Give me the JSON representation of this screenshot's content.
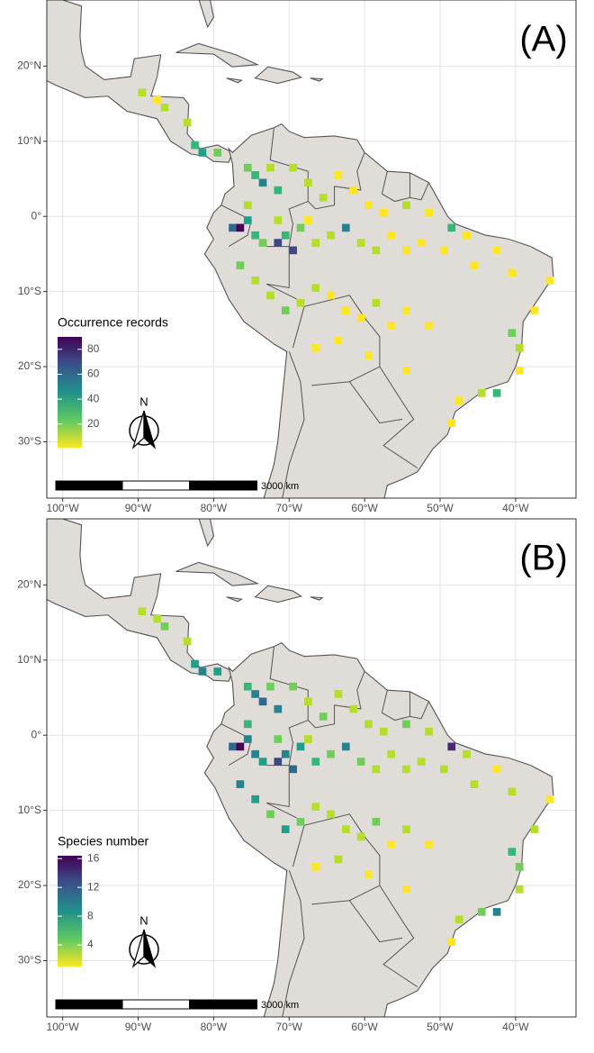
{
  "map": {
    "xticks": [
      {
        "value": -100,
        "label": "100°W"
      },
      {
        "value": -90,
        "label": "90°W"
      },
      {
        "value": -80,
        "label": "80°W"
      },
      {
        "value": -70,
        "label": "70°W"
      },
      {
        "value": -60,
        "label": "60°W"
      },
      {
        "value": -50,
        "label": "50°W"
      },
      {
        "value": -40,
        "label": "40°W"
      }
    ],
    "yticks": [
      {
        "value": 20,
        "label": "20°N"
      },
      {
        "value": 10,
        "label": "10°N"
      },
      {
        "value": 0,
        "label": "0°"
      },
      {
        "value": -10,
        "label": "10°S"
      },
      {
        "value": -20,
        "label": "20°S"
      },
      {
        "value": -30,
        "label": "30°S"
      }
    ],
    "xlim": [
      -102.1,
      -32
    ],
    "ylim": [
      -37.5,
      28.8
    ],
    "scale_bar": "3000 km",
    "north": "N",
    "panels": [
      {
        "label": "(A)",
        "legend_title": "Occurrence records",
        "color_lim": [
          1,
          90
        ],
        "legend_ticks": [
          20,
          40,
          60,
          80
        ],
        "cells": [
          [
            -90,
            17,
            8
          ],
          [
            -88,
            16,
            5
          ],
          [
            -87,
            15,
            12
          ],
          [
            -84,
            13,
            6
          ],
          [
            -83,
            10,
            30
          ],
          [
            -82,
            9,
            40
          ],
          [
            -80,
            9,
            25
          ],
          [
            -76,
            7,
            20
          ],
          [
            -75,
            6,
            35
          ],
          [
            -74,
            5,
            50
          ],
          [
            -73,
            7,
            15
          ],
          [
            -72,
            4,
            30
          ],
          [
            -70,
            7,
            10
          ],
          [
            -68,
            5,
            6
          ],
          [
            -66,
            3,
            8
          ],
          [
            -64,
            6,
            4
          ],
          [
            -62,
            4,
            3
          ],
          [
            -60,
            2,
            5
          ],
          [
            -58,
            1,
            4
          ],
          [
            -55,
            2,
            6
          ],
          [
            -52,
            1,
            3
          ],
          [
            -49,
            -1,
            35
          ],
          [
            -47,
            -2,
            5
          ],
          [
            -78,
            -1,
            60
          ],
          [
            -77,
            -1,
            90
          ],
          [
            -76,
            0,
            45
          ],
          [
            -75,
            -2,
            30
          ],
          [
            -74,
            -3,
            20
          ],
          [
            -72,
            -3,
            70
          ],
          [
            -71,
            -2,
            35
          ],
          [
            -70,
            -4,
            75
          ],
          [
            -69,
            -1,
            25
          ],
          [
            -67,
            -3,
            15
          ],
          [
            -65,
            -2,
            8
          ],
          [
            -63,
            -1,
            50
          ],
          [
            -61,
            -3,
            12
          ],
          [
            -59,
            -4,
            6
          ],
          [
            -57,
            -2,
            4
          ],
          [
            -55,
            -4,
            3
          ],
          [
            -53,
            -3,
            5
          ],
          [
            -50,
            -4,
            3
          ],
          [
            -46,
            -6,
            4
          ],
          [
            -43,
            -4,
            2
          ],
          [
            -41,
            -7,
            3
          ],
          [
            -36,
            -8,
            2
          ],
          [
            -77,
            -6,
            25
          ],
          [
            -75,
            -8,
            15
          ],
          [
            -73,
            -10,
            8
          ],
          [
            -71,
            -12,
            18
          ],
          [
            -69,
            -11,
            10
          ],
          [
            -67,
            -9,
            6
          ],
          [
            -65,
            -10,
            4
          ],
          [
            -63,
            -12,
            5
          ],
          [
            -61,
            -13,
            3
          ],
          [
            -59,
            -11,
            7
          ],
          [
            -57,
            -14,
            2
          ],
          [
            -55,
            -12,
            3
          ],
          [
            -52,
            -14,
            2
          ],
          [
            -67,
            -17,
            2
          ],
          [
            -64,
            -16,
            3
          ],
          [
            -60,
            -18,
            2
          ],
          [
            -55,
            -20,
            2
          ],
          [
            -41,
            -15,
            20
          ],
          [
            -40,
            -17,
            8
          ],
          [
            -40,
            -20,
            5
          ],
          [
            -43,
            -23,
            35
          ],
          [
            -45,
            -23,
            10
          ],
          [
            -48,
            -24,
            4
          ],
          [
            -49,
            -27,
            2
          ],
          [
            -38,
            -12,
            3
          ],
          [
            -76,
            2,
            10
          ],
          [
            -72,
            0,
            8
          ],
          [
            -68,
            0,
            4
          ]
        ]
      },
      {
        "label": "(B)",
        "legend_title": "Species number",
        "color_lim": [
          1,
          16.4
        ],
        "legend_ticks": [
          4,
          8,
          12,
          16
        ],
        "cells": [
          [
            -90,
            17,
            3
          ],
          [
            -88,
            16,
            2
          ],
          [
            -87,
            15,
            4
          ],
          [
            -84,
            13,
            3
          ],
          [
            -83,
            10,
            8
          ],
          [
            -82,
            9,
            9
          ],
          [
            -80,
            9,
            7
          ],
          [
            -76,
            7,
            6
          ],
          [
            -75,
            6,
            10
          ],
          [
            -74,
            5,
            11
          ],
          [
            -73,
            7,
            5
          ],
          [
            -72,
            4,
            9
          ],
          [
            -70,
            7,
            4
          ],
          [
            -68,
            5,
            3
          ],
          [
            -66,
            3,
            5
          ],
          [
            -64,
            6,
            2
          ],
          [
            -62,
            4,
            2
          ],
          [
            -60,
            2,
            3
          ],
          [
            -58,
            1,
            2
          ],
          [
            -55,
            2,
            4
          ],
          [
            -52,
            1,
            2
          ],
          [
            -49,
            -1,
            14
          ],
          [
            -47,
            -2,
            3
          ],
          [
            -78,
            -1,
            12
          ],
          [
            -77,
            -1,
            16
          ],
          [
            -76,
            0,
            10
          ],
          [
            -75,
            -2,
            9
          ],
          [
            -74,
            -3,
            8
          ],
          [
            -72,
            -3,
            13
          ],
          [
            -71,
            -2,
            9
          ],
          [
            -70,
            -4,
            12
          ],
          [
            -69,
            -1,
            8
          ],
          [
            -67,
            -3,
            6
          ],
          [
            -65,
            -2,
            4
          ],
          [
            -63,
            -1,
            10
          ],
          [
            -61,
            -3,
            5
          ],
          [
            -59,
            -4,
            3
          ],
          [
            -57,
            -2,
            2
          ],
          [
            -55,
            -4,
            2
          ],
          [
            -53,
            -3,
            3
          ],
          [
            -50,
            -4,
            2
          ],
          [
            -46,
            -6,
            2
          ],
          [
            -43,
            -4,
            1
          ],
          [
            -41,
            -7,
            2
          ],
          [
            -36,
            -8,
            1
          ],
          [
            -77,
            -6,
            9
          ],
          [
            -75,
            -8,
            7
          ],
          [
            -73,
            -10,
            4
          ],
          [
            -71,
            -12,
            8
          ],
          [
            -69,
            -11,
            5
          ],
          [
            -67,
            -9,
            3
          ],
          [
            -65,
            -10,
            2
          ],
          [
            -63,
            -12,
            3
          ],
          [
            -61,
            -13,
            2
          ],
          [
            -59,
            -11,
            4
          ],
          [
            -57,
            -14,
            1
          ],
          [
            -55,
            -12,
            2
          ],
          [
            -52,
            -14,
            1
          ],
          [
            -67,
            -17,
            1
          ],
          [
            -64,
            -16,
            2
          ],
          [
            -60,
            -18,
            1
          ],
          [
            -55,
            -20,
            1
          ],
          [
            -41,
            -15,
            6
          ],
          [
            -40,
            -17,
            4
          ],
          [
            -40,
            -20,
            3
          ],
          [
            -43,
            -23,
            9
          ],
          [
            -45,
            -23,
            5
          ],
          [
            -48,
            -24,
            2
          ],
          [
            -49,
            -27,
            1
          ],
          [
            -38,
            -12,
            2
          ],
          [
            -76,
            2,
            6
          ],
          [
            -72,
            0,
            5
          ],
          [
            -68,
            0,
            2
          ]
        ]
      }
    ]
  }
}
